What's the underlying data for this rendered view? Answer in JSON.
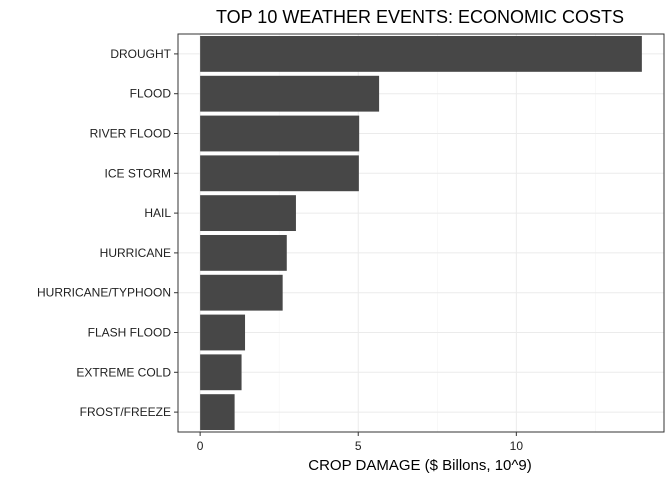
{
  "chart_data": {
    "type": "bar",
    "orientation": "horizontal",
    "title": "TOP 10 WEATHER EVENTS: ECONOMIC COSTS",
    "xlabel": "CROP DAMAGE ($ Billons, 10^9)",
    "ylabel": "",
    "categories": [
      "DROUGHT",
      "FLOOD",
      "RIVER FLOOD",
      "ICE STORM",
      "HAIL",
      "HURRICANE",
      "HURRICANE/TYPHOON",
      "FLASH FLOOD",
      "EXTREME COLD",
      "FROST/FREEZE"
    ],
    "values": [
      13.97,
      5.66,
      5.03,
      5.02,
      3.03,
      2.74,
      2.61,
      1.42,
      1.31,
      1.09
    ],
    "xlim": [
      -0.7,
      14.67
    ],
    "xticks": [
      0,
      5,
      10
    ],
    "xtick_labels": [
      "0",
      "5",
      "10"
    ],
    "grid": true,
    "colors": {
      "bar": "#474747",
      "grid": "#ebebeb",
      "border": "#333333"
    }
  }
}
